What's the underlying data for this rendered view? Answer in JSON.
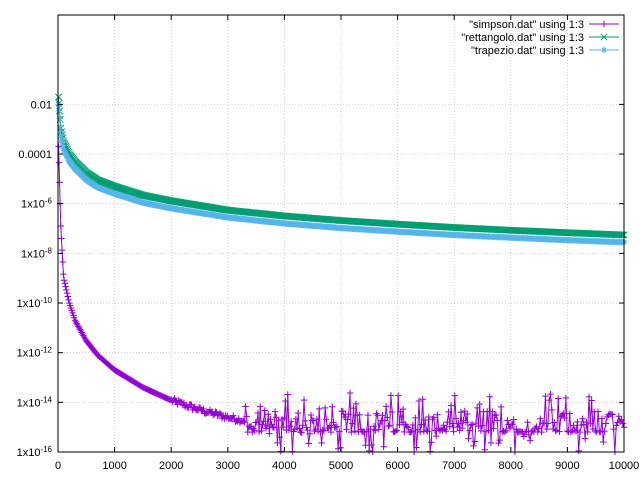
{
  "chart_data": {
    "type": "line",
    "title": "",
    "xlabel": "",
    "ylabel": "",
    "xlim": [
      0,
      10000
    ],
    "ylim_log10": [
      -16,
      1.6
    ],
    "y_scale": "log",
    "grid": true,
    "legend_position": "top-right",
    "x_ticks": [
      "0",
      "1000",
      "2000",
      "3000",
      "4000",
      "5000",
      "6000",
      "7000",
      "8000",
      "9000",
      "10000"
    ],
    "y_ticks": [
      {
        "label": "0.01",
        "exp": -2
      },
      {
        "label": "0.0001",
        "exp": -4
      },
      {
        "label": "1x10-6",
        "base": "1x10",
        "sup": "-6",
        "exp": -6
      },
      {
        "label": "1x10-8",
        "base": "1x10",
        "sup": "-8",
        "exp": -8
      },
      {
        "label": "1x10-10",
        "base": "1x10",
        "sup": "-10",
        "exp": -10
      },
      {
        "label": "1x10-12",
        "base": "1x10",
        "sup": "-12",
        "exp": -12
      },
      {
        "label": "1x10-14",
        "base": "1x10",
        "sup": "-14",
        "exp": -14
      },
      {
        "label": "1x10-16",
        "base": "1x10",
        "sup": "-16",
        "exp": -16
      }
    ],
    "series": [
      {
        "name": "\"simpson.dat\" using 1:3",
        "color": "#9400d3",
        "marker": "plus",
        "x": [
          10,
          50,
          100,
          200,
          300,
          500,
          700,
          1000,
          1500,
          2000,
          2500,
          3000,
          3500,
          4000,
          5000,
          6000,
          7000,
          8000,
          9000,
          10000
        ],
        "y": [
          0.0002,
          1e-07,
          1e-09,
          1e-10,
          2e-11,
          3e-12,
          8e-13,
          2e-13,
          4e-14,
          1.2e-14,
          5e-15,
          2.5e-15,
          1.5e-15,
          1e-15,
          8e-16,
          8e-16,
          8e-16,
          8e-16,
          8e-16,
          8e-16
        ],
        "noise_floor": "1e-15 (fluctuating between ~1e-16 and ~1e-14 from x≈3500 to 10000)"
      },
      {
        "name": "\"rettangolo.dat\" using 1:3",
        "color": "#009e73",
        "marker": "cross",
        "x": [
          10,
          50,
          100,
          200,
          300,
          500,
          700,
          1000,
          1500,
          2000,
          3000,
          4000,
          5000,
          6000,
          7000,
          8000,
          9000,
          10000
        ],
        "y": [
          0.02,
          0.001,
          0.0003,
          0.0001,
          5e-05,
          1.8e-05,
          9e-06,
          5e-06,
          2.2e-06,
          1.3e-06,
          5.5e-07,
          3.2e-07,
          2.1e-07,
          1.5e-07,
          1.1e-07,
          8.5e-08,
          6.8e-08,
          5.5e-08
        ]
      },
      {
        "name": "\"trapezio.dat\" using 1:3",
        "color": "#56b4e9",
        "marker": "star",
        "x": [
          10,
          50,
          100,
          200,
          300,
          500,
          700,
          1000,
          1500,
          2000,
          3000,
          4000,
          5000,
          6000,
          7000,
          8000,
          9000,
          10000
        ],
        "y": [
          0.01,
          0.0005,
          0.00015,
          5e-05,
          2.5e-05,
          9e-06,
          4.5e-06,
          2.5e-06,
          1.1e-06,
          6.5e-07,
          2.8e-07,
          1.6e-07,
          1.05e-07,
          7.5e-08,
          5.5e-08,
          4.3e-08,
          3.4e-08,
          2.8e-08
        ]
      }
    ]
  }
}
